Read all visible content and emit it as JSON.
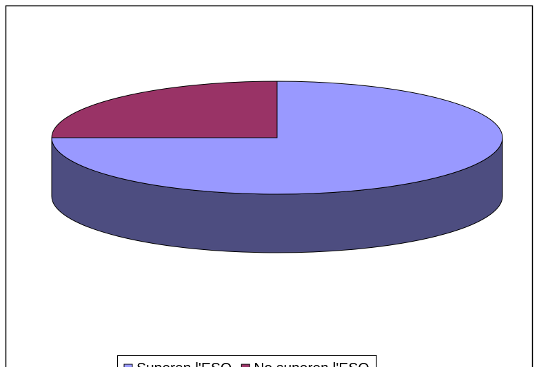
{
  "chart_data": {
    "type": "pie3d",
    "categories": [
      "Superen l'ESO",
      "No superen l'ESO"
    ],
    "values": [
      75,
      25
    ],
    "colors": [
      "#9999ff",
      "#993366"
    ],
    "side_colors": [
      "#4d4d80",
      "#4d1a33"
    ],
    "legend": "bottom"
  }
}
